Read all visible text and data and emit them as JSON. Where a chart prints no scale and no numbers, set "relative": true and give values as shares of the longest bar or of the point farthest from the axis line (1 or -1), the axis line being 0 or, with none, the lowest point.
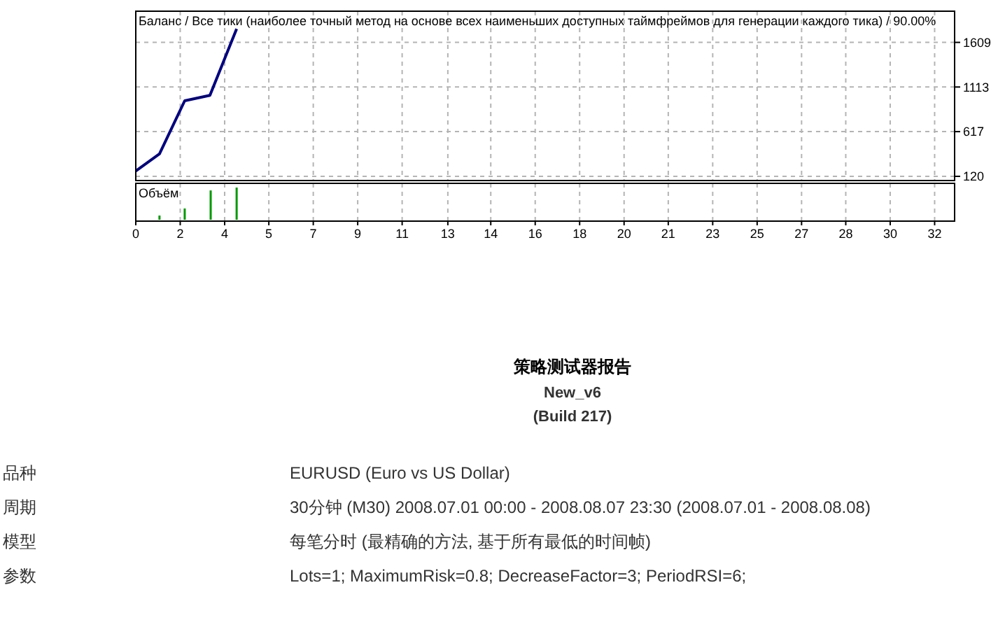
{
  "chart_data": [
    {
      "type": "line",
      "title": "Баланс / Все тики (наиболее точный метод на основе всех наименьших доступных таймфреймов для генерации каждого тика) / 90.00%",
      "x": [
        0,
        0.95,
        1.96,
        2.97,
        4.04
      ],
      "series": [
        {
          "color": "#000080",
          "values": [
            180,
            370,
            960,
            1020,
            1760
          ]
        }
      ],
      "xlim": [
        0,
        32.8
      ],
      "ylim": [
        120,
        1940
      ],
      "xticks": [
        {
          "value": 0,
          "label": null
        },
        {
          "value": 1.78,
          "label": null
        },
        {
          "value": 3.56,
          "label": null
        },
        {
          "value": 5.33,
          "label": null
        },
        {
          "value": 7.11,
          "label": null
        },
        {
          "value": 8.89,
          "label": null
        },
        {
          "value": 10.67,
          "label": null
        },
        {
          "value": 12.5,
          "label": null
        },
        {
          "value": 14.22,
          "label": null
        },
        {
          "value": 16,
          "label": null
        },
        {
          "value": 17.78,
          "label": null
        },
        {
          "value": 19.56,
          "label": null
        },
        {
          "value": 21.33,
          "label": null
        },
        {
          "value": 23.11,
          "label": null
        },
        {
          "value": 24.89,
          "label": null
        },
        {
          "value": 26.67,
          "label": null
        },
        {
          "value": 28.44,
          "label": null
        },
        {
          "value": 30.22,
          "label": null
        },
        {
          "value": 32,
          "label": null
        }
      ],
      "yticks": [
        120,
        617,
        1113,
        1609
      ],
      "grid": true,
      "tick_labels": "y",
      "marker": "none",
      "line_style": "solid"
    },
    {
      "type": "bar",
      "title": "Объём",
      "relative": true,
      "x": [
        0.95,
        1.96,
        3.0,
        4.04
      ],
      "series": [
        {
          "color": "#009900",
          "values": [
            0.13,
            0.35,
            0.91,
            1
          ]
        }
      ],
      "xlim": [
        0,
        32.8
      ],
      "xticks": [
        {
          "value": 0,
          "label": "0"
        },
        {
          "value": 1.78,
          "label": "2"
        },
        {
          "value": 3.56,
          "label": "4"
        },
        {
          "value": 5.33,
          "label": "5"
        },
        {
          "value": 7.11,
          "label": "7"
        },
        {
          "value": 8.89,
          "label": "9"
        },
        {
          "value": 10.67,
          "label": "11"
        },
        {
          "value": 12.5,
          "label": "13"
        },
        {
          "value": 14.22,
          "label": "14"
        },
        {
          "value": 16,
          "label": "16"
        },
        {
          "value": 17.78,
          "label": "18"
        },
        {
          "value": 19.56,
          "label": "20"
        },
        {
          "value": 21.33,
          "label": "21"
        },
        {
          "value": 23.11,
          "label": "23"
        },
        {
          "value": 24.89,
          "label": "25"
        },
        {
          "value": 26.67,
          "label": "27"
        },
        {
          "value": 28.44,
          "label": "28"
        },
        {
          "value": 30.22,
          "label": "30"
        },
        {
          "value": 32,
          "label": "32"
        }
      ],
      "grid": "x",
      "tick_labels": "x"
    },
    {
      "type": "other",
      "title": "策略测试器报告",
      "subtitle": "New_v6",
      "annotations": [
        "(Build 217)",
        "品种",
        "EURUSD (Euro vs US Dollar)",
        "周期",
        "30分钟 (M30) 2008.07.01 00:00 - 2008.08.07 23:30 (2008.07.01 - 2008.08.08)",
        "模型",
        "每笔分时 (最精确的方法, 基于所有最低的时间帧)",
        "参数",
        "Lots=1; MaximumRisk=0.8; DecreaseFactor=3; PeriodRSI=6;"
      ]
    }
  ]
}
